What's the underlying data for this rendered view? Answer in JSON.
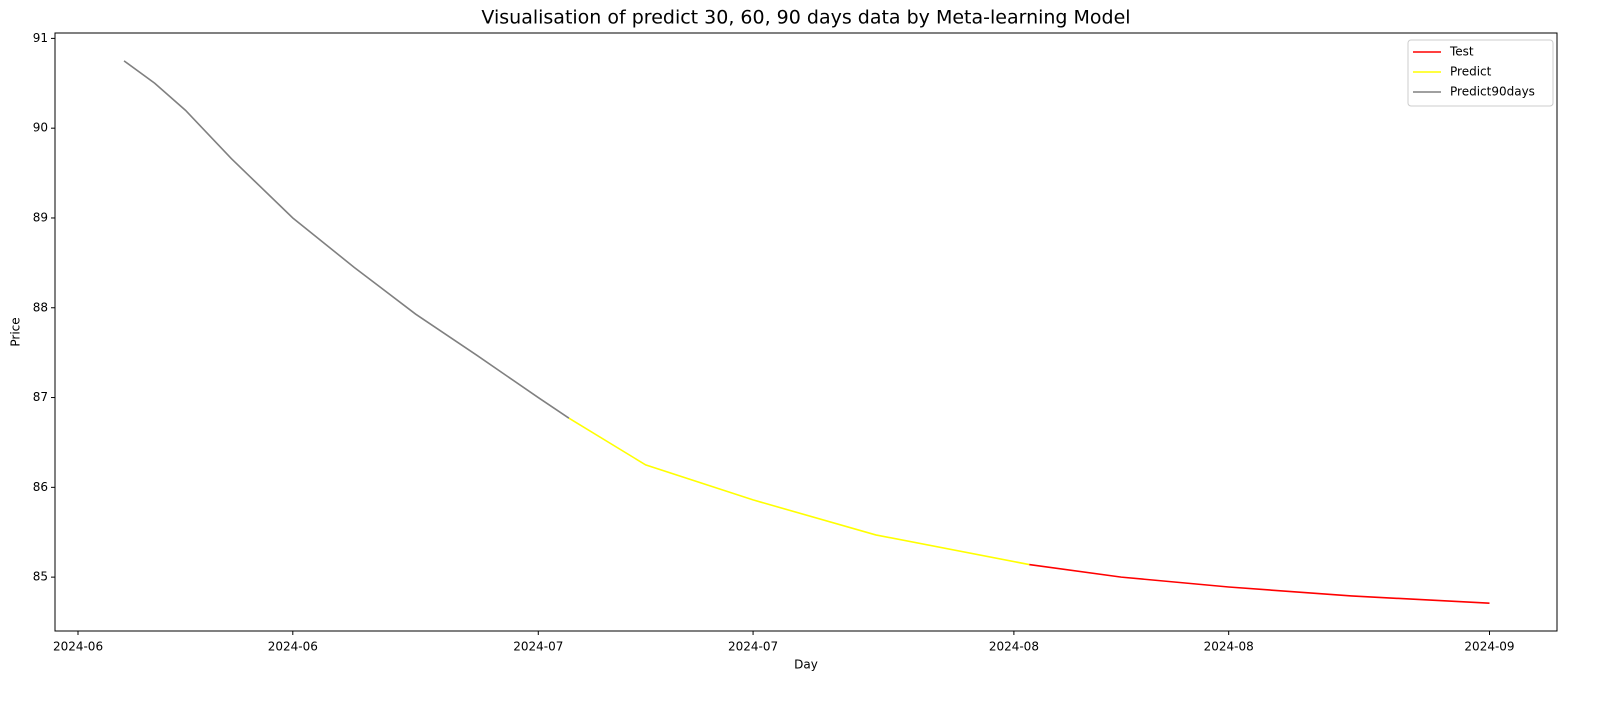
{
  "chart_data": {
    "type": "line",
    "title": "Visualisation of predict 30, 60, 90 days data by Meta-learning Model",
    "x_label": "Day",
    "y_label": "Price",
    "series": [
      {
        "name": "Test",
        "color": "#ff0000",
        "x": [
          62,
          68,
          75,
          83,
          92
        ],
        "values": [
          85.14,
          85.0,
          84.89,
          84.79,
          84.71
        ]
      },
      {
        "name": "Predict",
        "color": "#ffff00",
        "x": [
          32,
          37,
          44,
          52,
          62
        ],
        "values": [
          86.77,
          86.25,
          85.86,
          85.47,
          85.14
        ]
      },
      {
        "name": "Predict90days",
        "color": "#808080",
        "x": [
          3,
          5,
          7,
          10,
          14,
          18,
          22,
          26,
          30,
          32
        ],
        "values": [
          90.75,
          90.5,
          90.2,
          89.66,
          89.0,
          88.45,
          87.93,
          87.47,
          87.0,
          86.77
        ]
      }
    ],
    "xlim": [
      -1.5,
      96.4
    ],
    "ylim": [
      84.4,
      91.06
    ],
    "xticks": [
      {
        "value": 0,
        "label": "2024-06"
      },
      {
        "value": 14,
        "label": "2024-06"
      },
      {
        "value": 30,
        "label": "2024-07"
      },
      {
        "value": 44,
        "label": "2024-07"
      },
      {
        "value": 61,
        "label": "2024-08"
      },
      {
        "value": 75,
        "label": "2024-08"
      },
      {
        "value": 92,
        "label": "2024-09"
      }
    ],
    "yticks": [
      85,
      86,
      87,
      88,
      89,
      90,
      91
    ],
    "grid": false,
    "legend": "upper right"
  }
}
